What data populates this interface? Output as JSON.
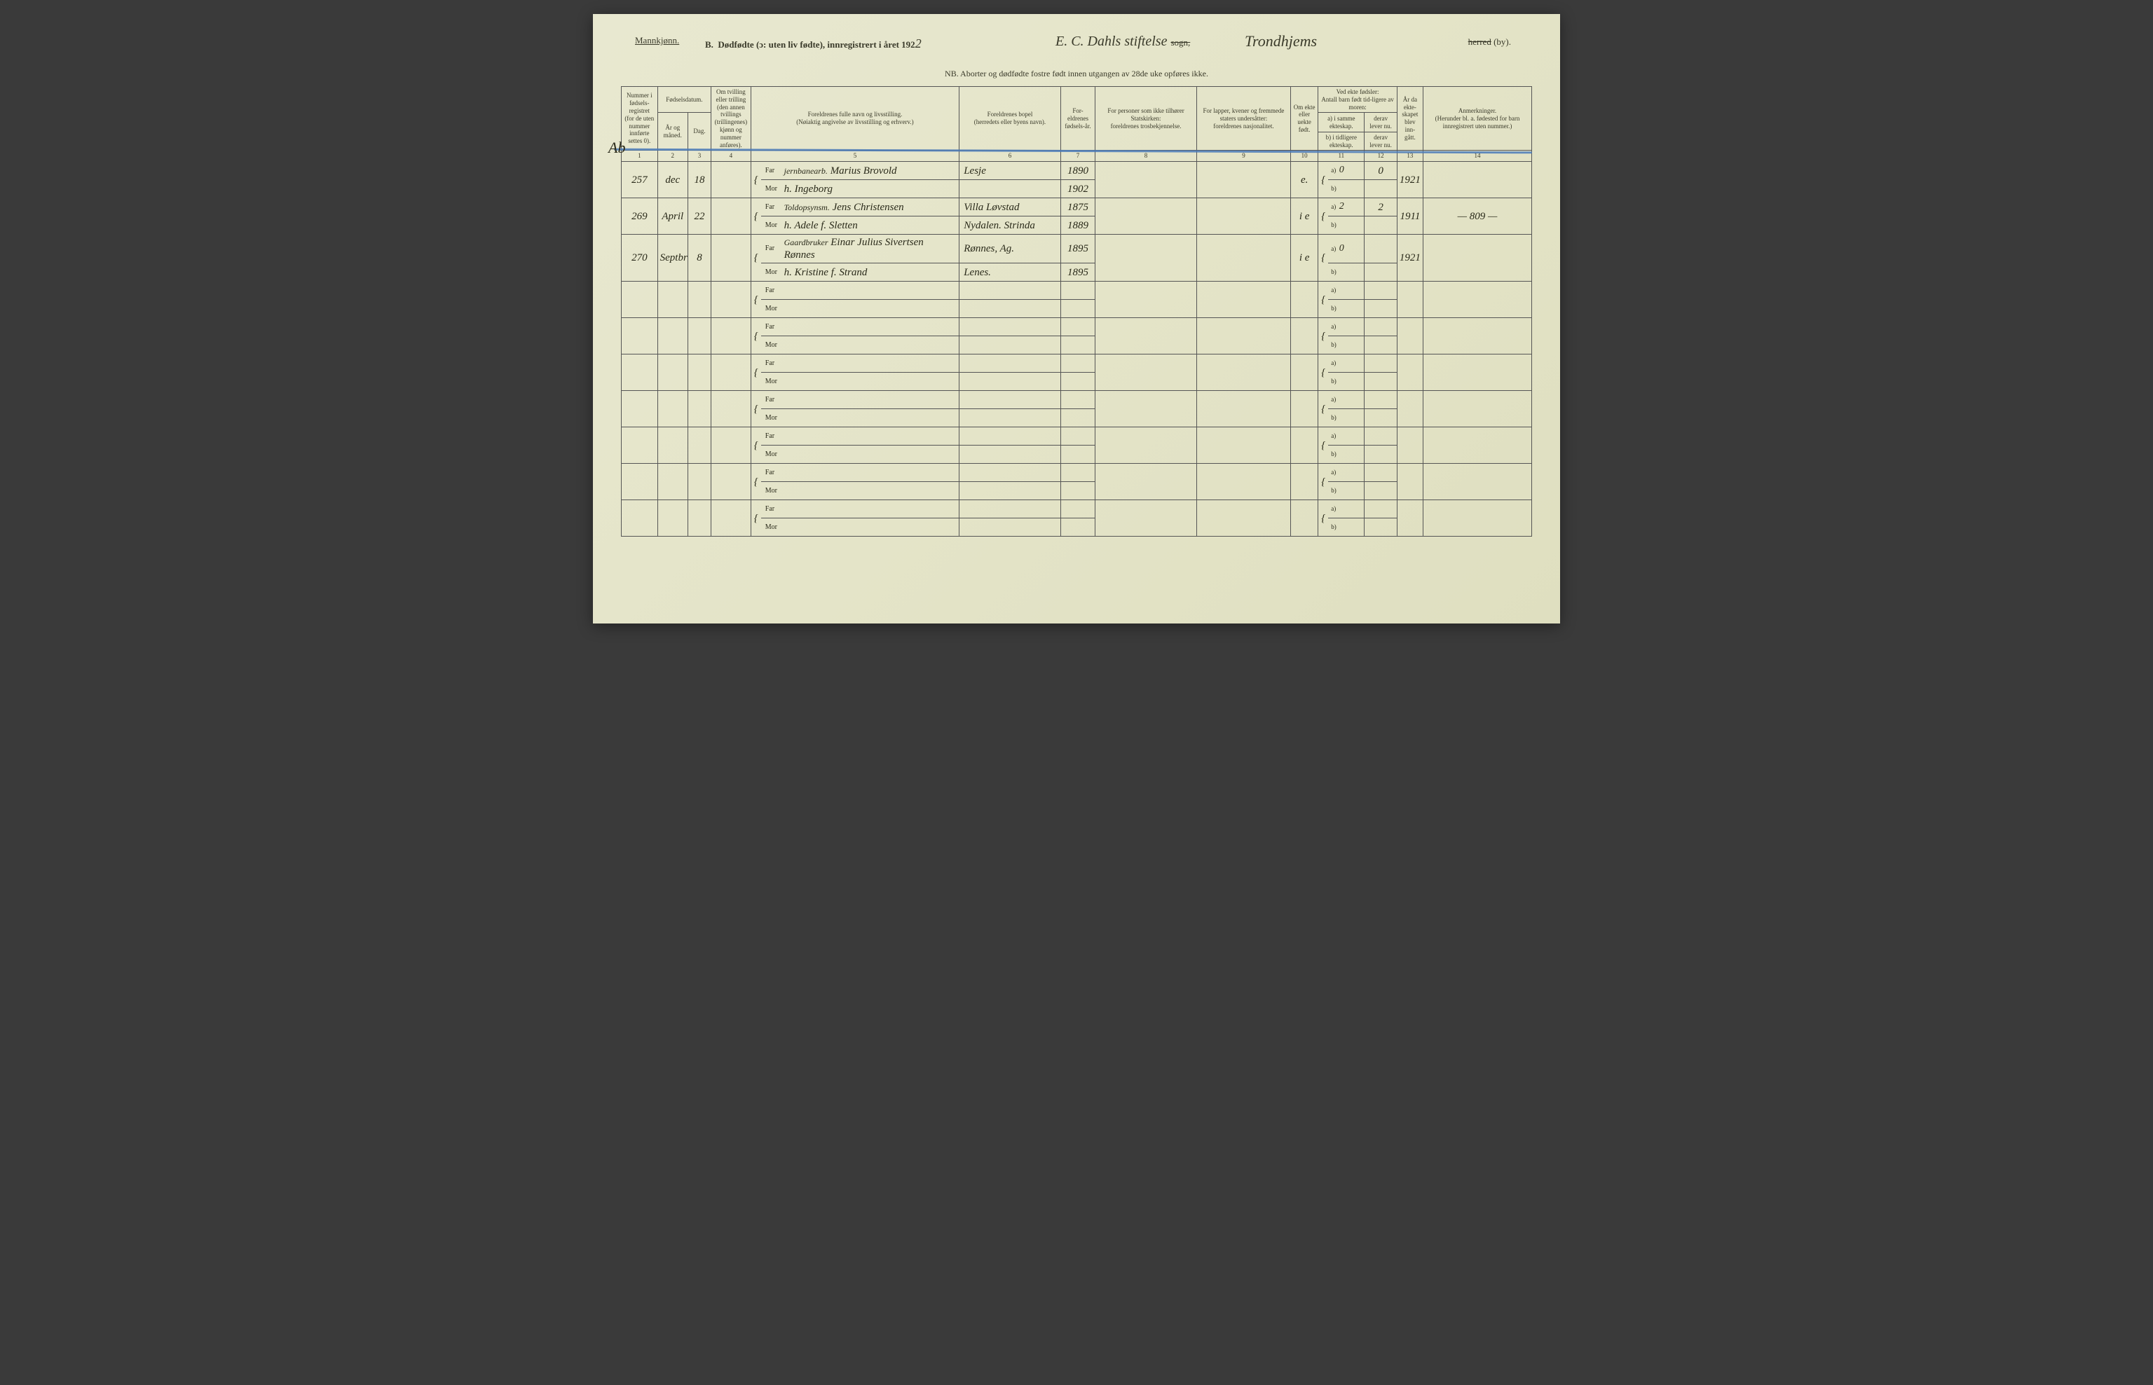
{
  "header": {
    "gender": "Mannkjønn.",
    "section": "B.",
    "title_main": "Dødfødte (ɔ: uten liv fødte), innregistrert i året 192",
    "year_suffix": "2",
    "parish_label_strike": "sogn,",
    "parish_hw": "E. C. Dahls stiftelse",
    "district_hw": "Trondhjems",
    "herred_strike": "herred",
    "herred_tail": "(by).",
    "nb": "NB. Aborter og dødfødte fostre født innen utgangen av 28de uke opføres ikke."
  },
  "columns": {
    "c1": "Nummer i fødsels-registret (for de uten nummer innførte settes 0).",
    "c2_top": "Fødselsdatum.",
    "c2a": "År og måned.",
    "c2b": "Dag.",
    "c4": "Om tvilling eller trilling (den annen tvillings (trillingenes) kjønn og nummer anføres).",
    "c5_top": "Foreldrenes fulle navn og livsstilling.",
    "c5_sub": "(Nøiaktig angivelse av livsstilling og erhverv.)",
    "c6_top": "Foreldrenes bopel",
    "c6_sub": "(herredets eller byens navn).",
    "c7": "For-eldrenes fødsels-år.",
    "c8_top": "For personer som ikke tilhører Statskirken:",
    "c8_sub": "foreldrenes trosbekjennelse.",
    "c9_top": "For lapper, kvener og fremmede staters undersåtter:",
    "c9_sub": "foreldrenes nasjonalitet.",
    "c10": "Om ekte eller uekte født.",
    "c11_top": "Ved ekte fødsler:",
    "c11_sub": "Antall barn født tid-ligere av moren:",
    "c11a": "a) i samme ekteskap.",
    "c11b": "b) i tidligere ekteskap.",
    "c12a": "derav lever nu.",
    "c12b": "derav lever nu.",
    "c13": "År da ekte-skapet blev inn-gått.",
    "c14_top": "Anmerkninger.",
    "c14_sub": "(Herunder bl. a. fødested for barn innregistrert uten nummer.)"
  },
  "colnums": [
    "1",
    "2",
    "3",
    "4",
    "5",
    "6",
    "7",
    "8",
    "9",
    "10",
    "11",
    "12",
    "13",
    "14"
  ],
  "labels": {
    "far": "Far",
    "mor": "Mor",
    "a": "a)",
    "b": "b)"
  },
  "margin_note": "Ab",
  "rows": [
    {
      "num": "257",
      "month": "dec",
      "day": "18",
      "far_occ": "jernbanearb.",
      "far_name": "Marius Brovold",
      "far_place": "Lesje",
      "far_year": "1890",
      "mor_name": "h. Ingeborg",
      "mor_place": "",
      "mor_year": "1902",
      "ekte": "e.",
      "a_same": "0",
      "a_lever": "0",
      "marriage": "1921",
      "note": ""
    },
    {
      "num": "269",
      "month": "April",
      "day": "22",
      "far_occ": "Toldopsynsm.",
      "far_name": "Jens Christensen",
      "far_place": "Villa Løvstad",
      "far_year": "1875",
      "mor_name": "h. Adele f. Sletten",
      "mor_place": "Nydalen. Strinda",
      "mor_year": "1889",
      "ekte": "i e",
      "a_same": "2",
      "a_lever": "2",
      "marriage": "1911",
      "note": "— 809 —"
    },
    {
      "num": "270",
      "month": "Septbr",
      "day": "8",
      "far_occ": "Gaardbruker",
      "far_name": "Einar Julius Sivertsen Rønnes",
      "far_place": "Rønnes, Ag.",
      "far_year": "1895",
      "mor_name": "h. Kristine f. Strand",
      "mor_place": "Lenes.",
      "mor_year": "1895",
      "ekte": "i e",
      "a_same": "0",
      "a_lever": "",
      "marriage": "1921",
      "note": ""
    }
  ],
  "empty_rows": 7,
  "colors": {
    "paper": "#e6e6ce",
    "ink": "#2a2a1a",
    "rule": "#555",
    "blue_pencil": "#4a7ab8"
  }
}
